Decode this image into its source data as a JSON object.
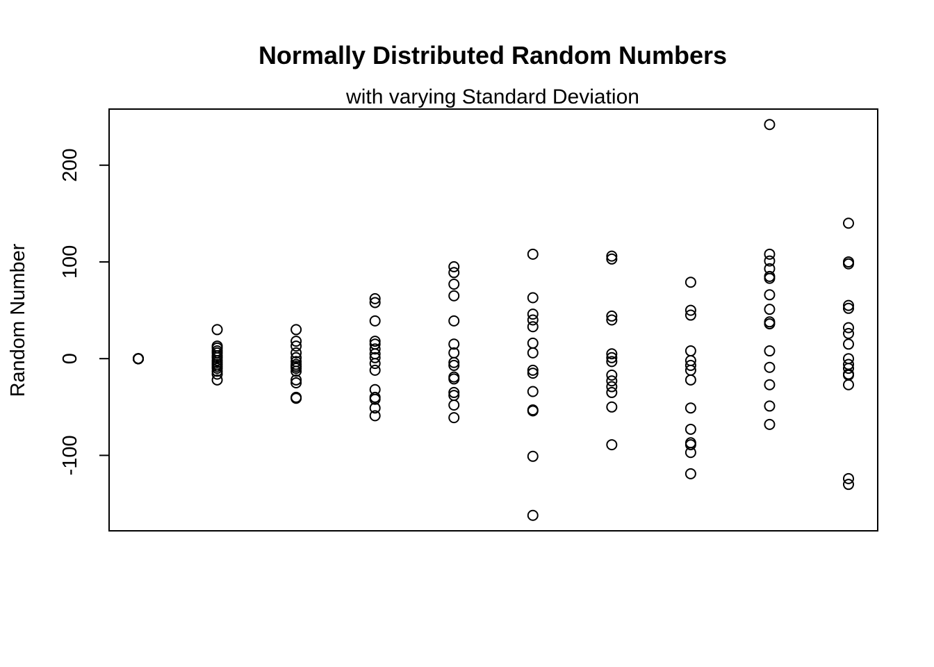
{
  "chart_data": {
    "type": "scatter",
    "title": "Normally Distributed Random Numbers",
    "subtitle": "with varying Standard Deviation",
    "xlabel": "",
    "ylabel": "Random Number",
    "x_axis_shown": false,
    "xlim": [
      0.63,
      10.37
    ],
    "ylim": [
      -178,
      258
    ],
    "yticks": [
      -100,
      0,
      100,
      200
    ],
    "ytick_labels": [
      "-100",
      "0",
      "100",
      "200"
    ],
    "grid": false,
    "legend": "none",
    "marker": "open-circle",
    "colors": {
      "marker": "#000000",
      "axis": "#000000",
      "background": "#ffffff"
    },
    "series": [
      {
        "x": 1,
        "values": [
          0,
          0,
          0,
          0,
          0,
          0,
          0,
          0,
          0,
          0,
          0,
          0,
          0,
          0,
          0
        ]
      },
      {
        "x": 2,
        "values": [
          30,
          13,
          11,
          8,
          6,
          3,
          1,
          -2,
          -4,
          -6,
          -8,
          -10,
          -13,
          -16,
          -22
        ]
      },
      {
        "x": 3,
        "values": [
          30,
          18,
          13,
          6,
          1,
          -3,
          -6,
          -8,
          -10,
          -13,
          -22,
          -25,
          -40,
          -41,
          -8
        ]
      },
      {
        "x": 4,
        "values": [
          62,
          58,
          39,
          18,
          15,
          10,
          5,
          1,
          -5,
          -12,
          -32,
          -40,
          -42,
          -51,
          -59
        ]
      },
      {
        "x": 5,
        "values": [
          95,
          89,
          77,
          65,
          39,
          15,
          6,
          -4,
          -7,
          -19,
          -21,
          -35,
          -38,
          -48,
          -61
        ]
      },
      {
        "x": 6,
        "values": [
          108,
          63,
          46,
          40,
          33,
          16,
          6,
          -12,
          -15,
          -34,
          -53,
          -54,
          -101,
          -162
        ]
      },
      {
        "x": 7,
        "values": [
          106,
          103,
          44,
          40,
          5,
          1,
          -3,
          -17,
          -23,
          -29,
          -35,
          -50,
          -89
        ]
      },
      {
        "x": 8,
        "values": [
          79,
          50,
          45,
          8,
          -2,
          -7,
          -12,
          -22,
          -51,
          -73,
          -87,
          -89,
          -97,
          -119
        ]
      },
      {
        "x": 9,
        "values": [
          242,
          108,
          101,
          93,
          85,
          83,
          66,
          51,
          38,
          36,
          8,
          -9,
          -27,
          -49,
          -68
        ]
      },
      {
        "x": 10,
        "values": [
          140,
          100,
          98,
          55,
          52,
          32,
          26,
          15,
          0,
          -6,
          -10,
          -16,
          -17,
          -27,
          -124,
          -130
        ]
      }
    ]
  }
}
